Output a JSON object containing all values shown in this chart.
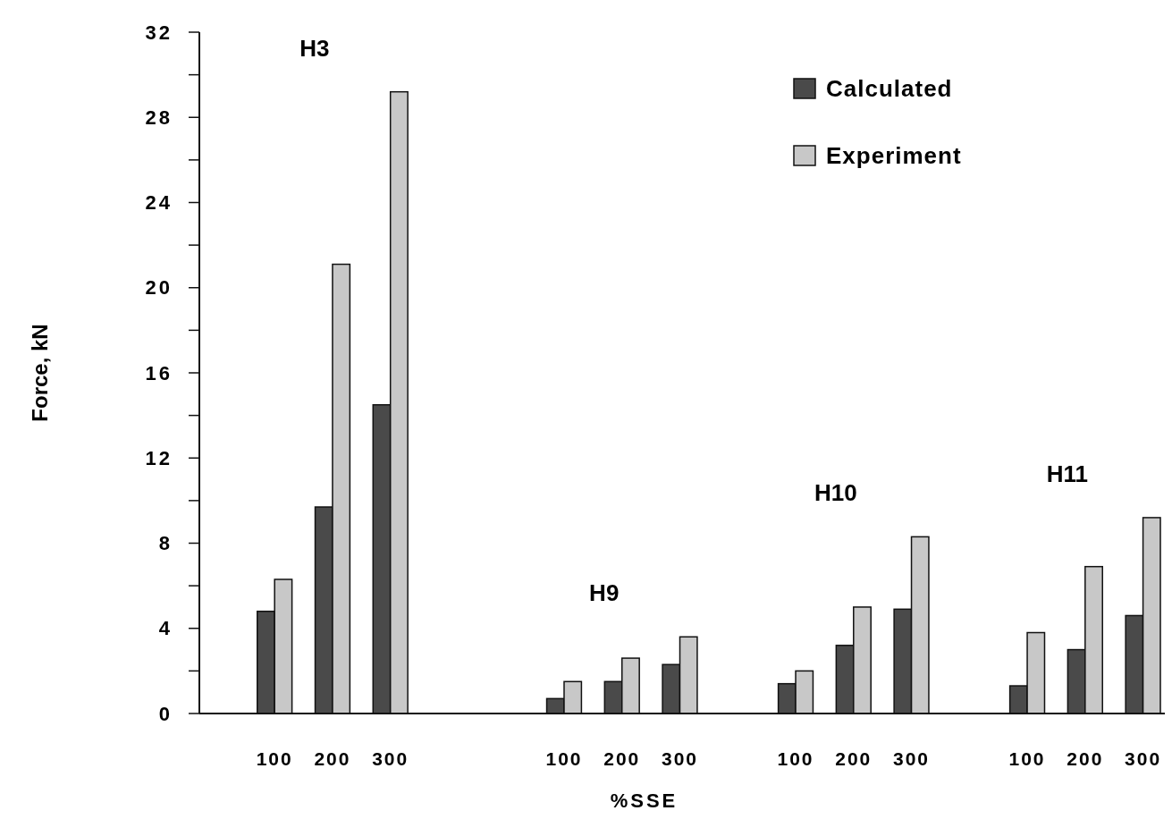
{
  "chart_data": {
    "type": "bar",
    "xlabel": "%SSE",
    "ylabel": "Force, kN",
    "categories": [
      null,
      "100",
      "200",
      "300",
      null,
      null,
      "100",
      "200",
      "300",
      null,
      "100",
      "200",
      "300",
      null,
      "100",
      "200",
      "300"
    ],
    "series": [
      {
        "name": "Calculated",
        "color": "#4a4a4a",
        "values": [
          null,
          4.8,
          9.7,
          14.5,
          null,
          null,
          0.7,
          1.5,
          2.3,
          null,
          1.4,
          3.2,
          4.9,
          null,
          1.3,
          3.0,
          4.6
        ]
      },
      {
        "name": "Experiment",
        "color": "#c8c8c8",
        "values": [
          null,
          6.3,
          21.1,
          29.2,
          null,
          null,
          1.5,
          2.6,
          3.6,
          null,
          2.0,
          5.0,
          8.3,
          null,
          3.8,
          6.9,
          9.2
        ]
      }
    ],
    "ylim": [
      0,
      32
    ],
    "yticks": [
      0,
      {
        "value": 2,
        "label": null
      },
      4,
      {
        "value": 6,
        "label": null
      },
      8,
      {
        "value": 10,
        "label": null
      },
      12,
      {
        "value": 14,
        "label": null
      },
      16,
      {
        "value": 18,
        "label": null
      },
      20,
      {
        "value": 22,
        "label": null
      },
      24,
      {
        "value": 26,
        "label": null
      },
      28,
      {
        "value": 30,
        "label": null
      },
      32
    ],
    "annotations": [
      "H3",
      "H9",
      "H10",
      "H11"
    ],
    "legend": "top right",
    "grid": false
  }
}
